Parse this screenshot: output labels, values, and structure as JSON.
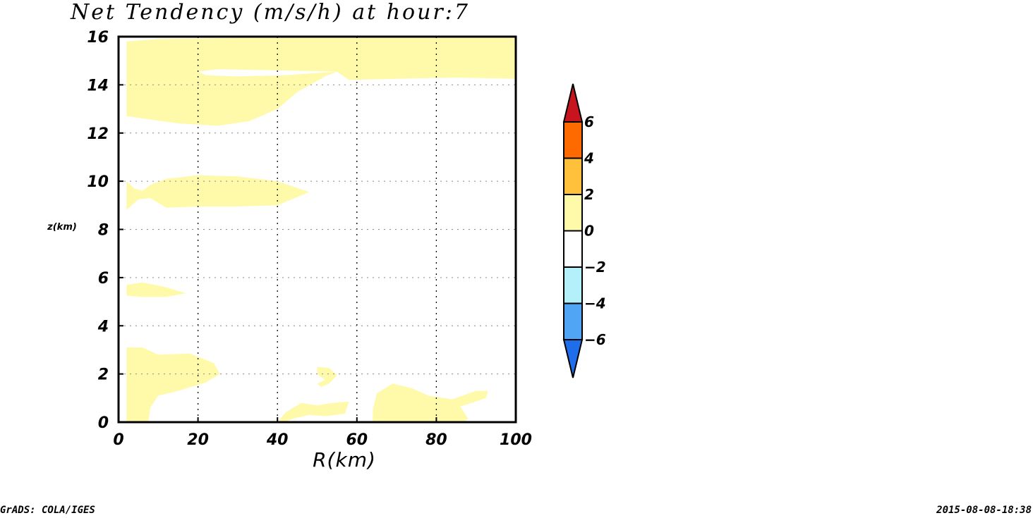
{
  "chart_data": {
    "type": "heatmap",
    "title": "Net Tendency (m/s/h) at hour:7",
    "xlabel": "R(km)",
    "ylabel": "z(km)",
    "xlim": [
      0,
      100
    ],
    "ylim": [
      0,
      16
    ],
    "x_ticks": [
      "0",
      "20",
      "40",
      "60",
      "80",
      "100"
    ],
    "y_ticks": [
      "0",
      "2",
      "4",
      "6",
      "8",
      "10",
      "12",
      "14",
      "16"
    ],
    "grid": true,
    "colorbar": {
      "placement": "right",
      "levels": [
        "6",
        "4",
        "2",
        "0",
        "-2",
        "-4",
        "-6"
      ],
      "bins": [
        {
          "range": "> 6",
          "color": "#c8141e"
        },
        {
          "range": "4 to 6",
          "color": "#ff6a00"
        },
        {
          "range": "2 to 4",
          "color": "#ffc03c"
        },
        {
          "range": "0 to 2",
          "color": "#fffaaa"
        },
        {
          "range": "-2 to 0",
          "color": "#ffffff"
        },
        {
          "range": "-4 to -2",
          "color": "#b4f0fa"
        },
        {
          "range": "-6 to -4",
          "color": "#50a5f5"
        },
        {
          "range": "< -6",
          "color": "#1e6eeb"
        }
      ]
    },
    "regions": [
      {
        "bin": "0 to 2",
        "color": "#fffaaa",
        "points": [
          [
            2,
            15.8
          ],
          [
            10,
            15.9
          ],
          [
            30,
            15.95
          ],
          [
            100,
            15.95
          ],
          [
            100,
            14.25
          ],
          [
            85,
            14.3
          ],
          [
            70,
            14.25
          ],
          [
            58,
            14.2
          ],
          [
            55,
            14.55
          ],
          [
            52,
            14.35
          ],
          [
            45,
            13.7
          ],
          [
            40,
            13.0
          ],
          [
            33,
            12.5
          ],
          [
            25,
            12.3
          ],
          [
            15,
            12.4
          ],
          [
            2,
            12.7
          ]
        ]
      },
      {
        "bin": "-2 to 0",
        "color": "#ffffff",
        "points": [
          [
            20,
            14.55
          ],
          [
            25,
            14.65
          ],
          [
            40,
            14.6
          ],
          [
            55,
            14.55
          ],
          [
            42,
            14.4
          ],
          [
            30,
            14.35
          ],
          [
            22,
            14.4
          ]
        ]
      },
      {
        "bin": "0 to 2",
        "color": "#fffaaa",
        "points": [
          [
            2,
            10.0
          ],
          [
            4,
            9.7
          ],
          [
            6,
            9.6
          ],
          [
            8,
            9.85
          ],
          [
            12,
            10.1
          ],
          [
            20,
            10.25
          ],
          [
            30,
            10.2
          ],
          [
            40,
            10.0
          ],
          [
            48,
            9.55
          ],
          [
            40,
            9.0
          ],
          [
            30,
            8.95
          ],
          [
            20,
            8.95
          ],
          [
            12,
            8.9
          ],
          [
            8,
            9.3
          ],
          [
            5,
            9.25
          ],
          [
            2,
            8.8
          ]
        ]
      },
      {
        "bin": "0 to 2",
        "color": "#fffaaa",
        "points": [
          [
            2,
            5.7
          ],
          [
            6,
            5.8
          ],
          [
            12,
            5.6
          ],
          [
            17,
            5.35
          ],
          [
            12,
            5.2
          ],
          [
            6,
            5.2
          ],
          [
            2,
            5.25
          ]
        ]
      },
      {
        "bin": "0 to 2",
        "color": "#fffaaa",
        "points": [
          [
            2,
            0
          ],
          [
            2,
            3.1
          ],
          [
            6,
            3.1
          ],
          [
            10,
            2.8
          ],
          [
            18,
            2.85
          ],
          [
            24,
            2.45
          ],
          [
            25.5,
            2.0
          ],
          [
            22,
            1.65
          ],
          [
            15,
            1.3
          ],
          [
            10,
            1.1
          ],
          [
            8,
            0.6
          ],
          [
            7.5,
            0
          ]
        ]
      },
      {
        "bin": "0 to 2",
        "color": "#fffaaa",
        "points": [
          [
            50,
            2.3
          ],
          [
            53,
            2.25
          ],
          [
            55,
            1.95
          ],
          [
            53,
            1.6
          ],
          [
            51,
            1.45
          ],
          [
            50,
            1.6
          ],
          [
            52,
            1.75
          ],
          [
            50,
            2.0
          ]
        ]
      },
      {
        "bin": "0 to 2",
        "color": "#fffaaa",
        "points": [
          [
            40,
            0
          ],
          [
            42,
            0.4
          ],
          [
            46,
            0.8
          ],
          [
            50,
            0.7
          ],
          [
            54,
            0.8
          ],
          [
            58,
            0.85
          ],
          [
            57,
            0.35
          ],
          [
            52,
            0.25
          ],
          [
            48,
            0.3
          ],
          [
            44,
            0.15
          ],
          [
            42,
            0
          ]
        ]
      },
      {
        "bin": "0 to 2",
        "color": "#fffaaa",
        "points": [
          [
            64,
            0
          ],
          [
            64,
            0.5
          ],
          [
            65,
            1.2
          ],
          [
            69,
            1.6
          ],
          [
            74,
            1.4
          ],
          [
            78,
            1.1
          ],
          [
            84,
            0.95
          ],
          [
            90,
            1.3
          ],
          [
            93,
            1.3
          ],
          [
            92.5,
            1.0
          ],
          [
            88,
            0.75
          ],
          [
            86,
            0.65
          ],
          [
            87,
            0.4
          ],
          [
            88,
            0.15
          ],
          [
            87,
            0
          ]
        ]
      }
    ]
  },
  "footer": {
    "left": "GrADS: COLA/IGES",
    "right": "2015-08-08-18:38"
  }
}
